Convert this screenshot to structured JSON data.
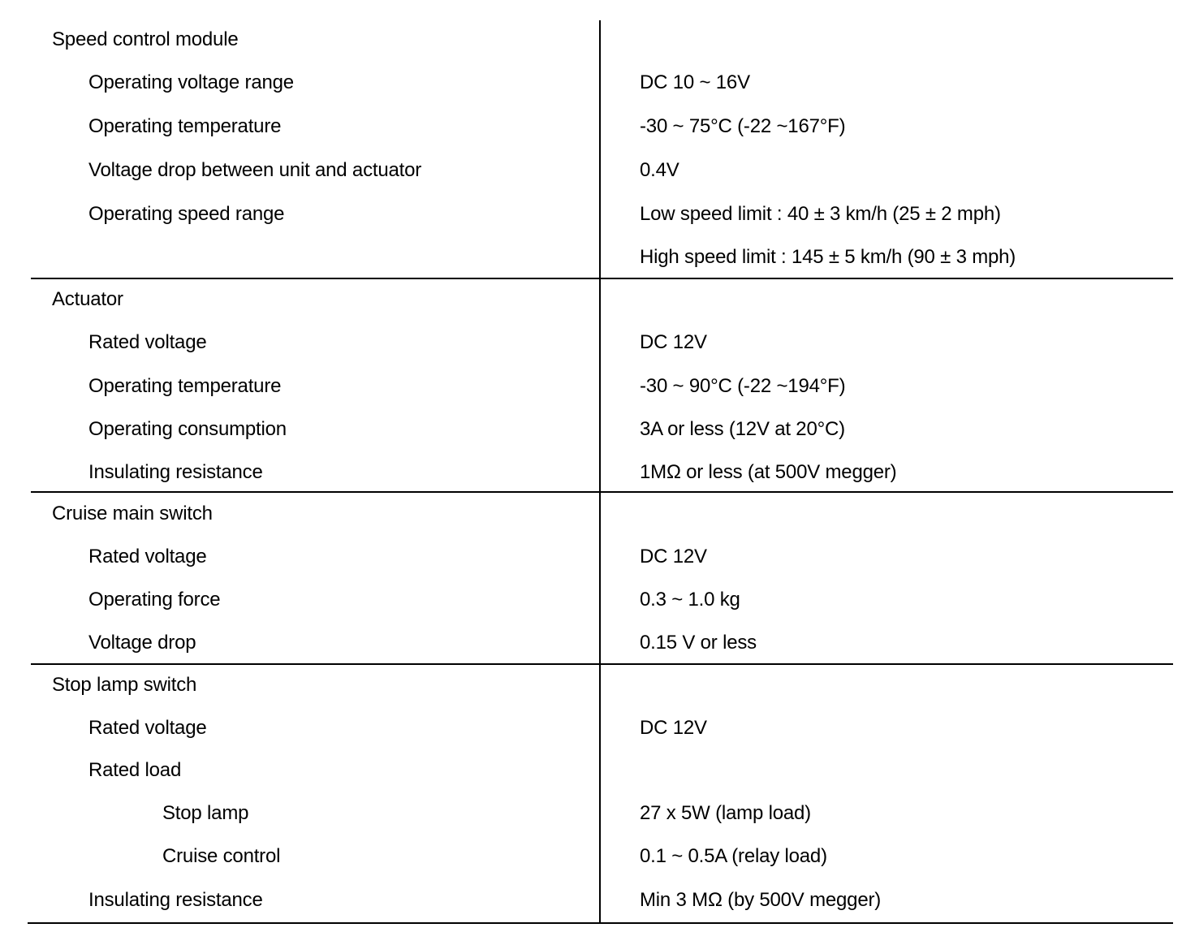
{
  "sections": [
    {
      "title": "Speed control module",
      "items": [
        {
          "label": "Operating voltage range",
          "value": "DC 10 ~ 16V",
          "level": 1
        },
        {
          "label": "Operating temperature",
          "value": "-30 ~ 75°C (-22 ~167°F)",
          "level": 1
        },
        {
          "label": "Voltage drop between unit and actuator",
          "value": "0.4V",
          "level": 1
        },
        {
          "label": "Operating speed range",
          "value": "Low speed limit : 40 ± 3 km/h (25 ± 2 mph)",
          "level": 1
        },
        {
          "label": "",
          "value": "High speed limit : 145 ± 5 km/h (90 ± 3 mph)",
          "level": 1
        }
      ]
    },
    {
      "title": "Actuator",
      "items": [
        {
          "label": "Rated voltage",
          "value": "DC 12V",
          "level": 1
        },
        {
          "label": "Operating temperature",
          "value": "-30 ~ 90°C (-22 ~194°F)",
          "level": 1
        },
        {
          "label": "Operating consumption",
          "value": "3A or less (12V at 20°C)",
          "level": 1
        },
        {
          "label": "Insulating resistance",
          "value": "1MΩ or less (at 500V megger)",
          "level": 1
        }
      ]
    },
    {
      "title": "Cruise main switch",
      "items": [
        {
          "label": "Rated voltage",
          "value": "DC 12V",
          "level": 1
        },
        {
          "label": "Operating force",
          "value": "0.3 ~ 1.0 kg",
          "level": 1
        },
        {
          "label": "Voltage drop",
          "value": "0.15 V or less",
          "level": 1
        }
      ]
    },
    {
      "title": "Stop lamp switch",
      "items": [
        {
          "label": "Rated voltage",
          "value": "DC 12V",
          "level": 1
        },
        {
          "label": "Rated load",
          "value": "",
          "level": 1
        },
        {
          "label": "Stop lamp",
          "value": "27 x 5W (lamp load)",
          "level": 2
        },
        {
          "label": "Cruise control",
          "value": "0.1 ~ 0.5A (relay load)",
          "level": 2
        },
        {
          "label": "Insulating resistance",
          "value": "Min 3 MΩ (by 500V megger)",
          "level": 1
        }
      ]
    }
  ]
}
